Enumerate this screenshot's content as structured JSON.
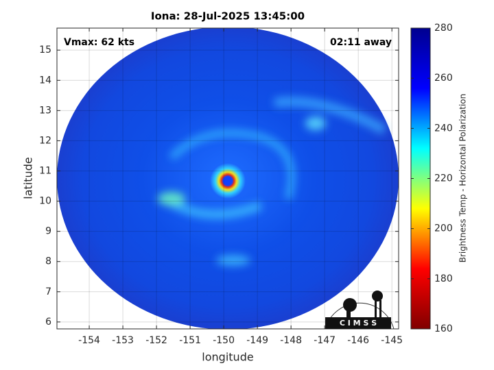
{
  "chart_data": {
    "type": "image",
    "title": "Iona: 28-Jul-2025 13:45:00",
    "annotations": [
      "Vmax: 62 kts",
      "02:11 away"
    ],
    "xlabel": "longitude",
    "ylabel": "latitude",
    "xlim": [
      -154.96,
      -144.8
    ],
    "ylim": [
      5.77,
      15.73
    ],
    "xticks": [
      -154,
      -153,
      -152,
      -151,
      -150,
      -149,
      -148,
      -147,
      -146,
      -145
    ],
    "yticks": [
      6,
      7,
      8,
      9,
      10,
      11,
      12,
      13,
      14,
      15
    ],
    "grid": true,
    "colormap": "jet",
    "colormap_reversed": true,
    "colorbar": {
      "label": "Brightness Temp - Horizontal Polarization",
      "lim": [
        160,
        280
      ],
      "ticks": [
        160,
        180,
        200,
        220,
        240,
        260,
        280
      ]
    },
    "logo_text": "C I M S S"
  }
}
